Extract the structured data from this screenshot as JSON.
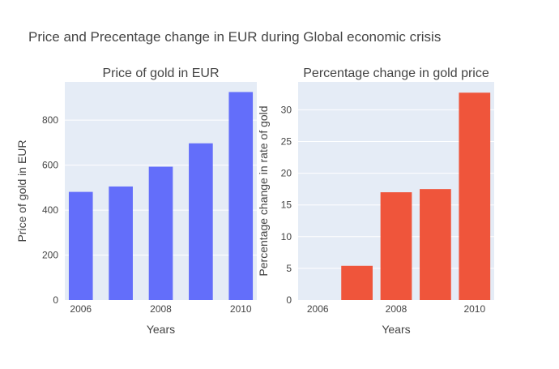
{
  "title": "Price and Precentage change in EUR during Global economic crisis",
  "colors": {
    "plot_bg": "#e5ecf6",
    "grid": "#ffffff",
    "text": "#444444"
  },
  "chart_data": [
    {
      "type": "bar",
      "title": "Price of gold in EUR",
      "xlabel": "Years",
      "ylabel": "Price of gold in EUR",
      "x": [
        2006,
        2007,
        2008,
        2009,
        2010
      ],
      "values": [
        481,
        505,
        593,
        697,
        925
      ],
      "color": "#636efa",
      "xlim": [
        2005.6,
        2010.4
      ],
      "ylim": [
        0,
        970
      ],
      "xticks": [
        2006,
        2008,
        2010
      ],
      "xtick_labels": [
        "2006",
        "2008",
        "2010"
      ],
      "yticks": [
        0,
        200,
        400,
        600,
        800
      ],
      "ytick_labels": [
        "0",
        "200",
        "400",
        "600",
        "800"
      ],
      "grid": true
    },
    {
      "type": "bar",
      "title": "Percentage change in gold price",
      "xlabel": "Years",
      "ylabel": "Percentage change in rate of gold",
      "x": [
        2006,
        2007,
        2008,
        2009,
        2010
      ],
      "values": [
        0,
        5.4,
        17.0,
        17.5,
        32.7
      ],
      "color": "#ef553b",
      "xlim": [
        2005.5,
        2010.5
      ],
      "ylim": [
        0,
        34.4
      ],
      "xticks": [
        2006,
        2008,
        2010
      ],
      "xtick_labels": [
        "2006",
        "2008",
        "2010"
      ],
      "yticks": [
        0,
        5,
        10,
        15,
        20,
        25,
        30
      ],
      "ytick_labels": [
        "0",
        "5",
        "10",
        "15",
        "20",
        "25",
        "30"
      ],
      "grid": true
    }
  ]
}
